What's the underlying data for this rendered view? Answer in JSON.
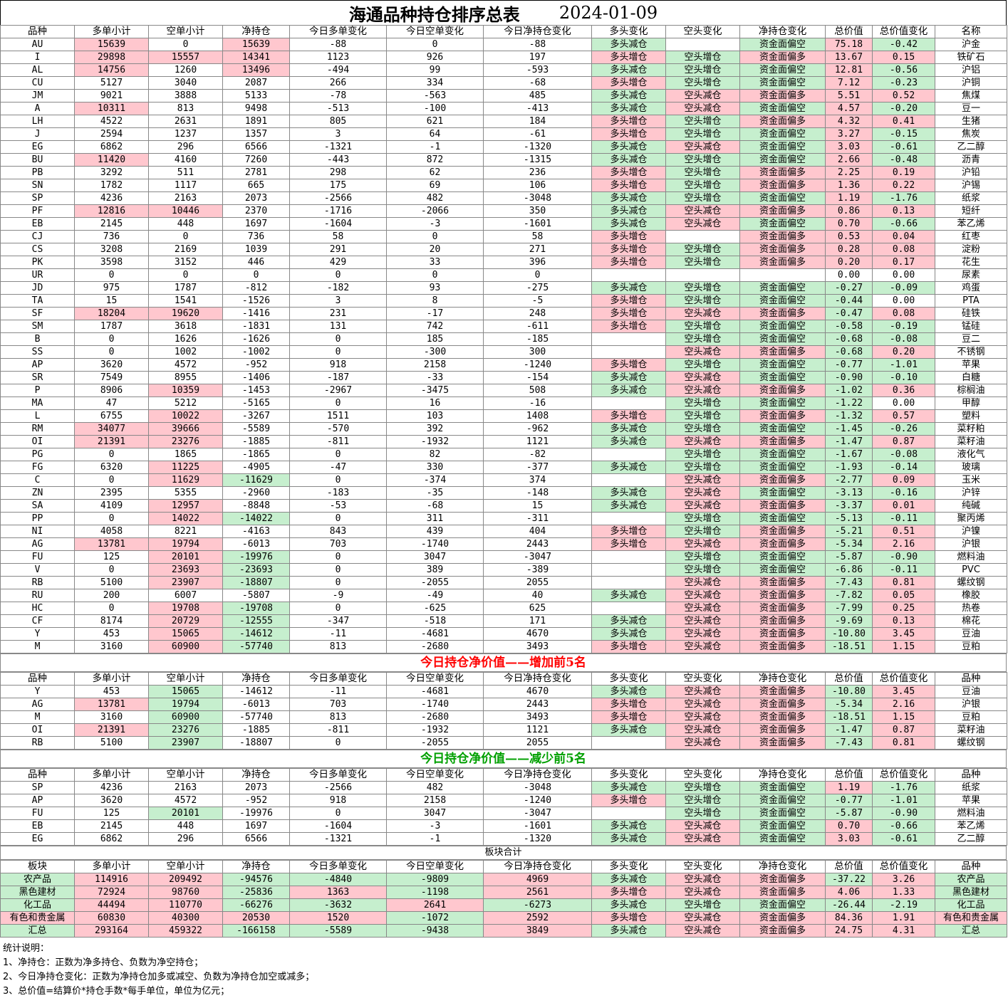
{
  "title": "海通品种持仓排序总表",
  "date": "2024-01-09",
  "headers": [
    "品种",
    "多单小计",
    "空单小计",
    "净持仓",
    "今日多单变化",
    "今日空单变化",
    "今日净持仓变化",
    "多头变化",
    "空头变化",
    "净持仓变化",
    "总价值",
    "总价值变化",
    "名称"
  ],
  "headers_top": [
    "品种",
    "多单小计",
    "空单小计",
    "净持仓",
    "今日多单变化",
    "今日空单变化",
    "今日净持仓变化",
    "多头变化",
    "空头变化",
    "净持仓变化",
    "总价值",
    "总价值变化",
    "品种"
  ],
  "headers_sector": [
    "板块",
    "多单小计",
    "空单小计",
    "净持仓",
    "今日多单变化",
    "今日空单变化",
    "今日净持仓变化",
    "多头变化",
    "空头变化",
    "净持仓变化",
    "总价值",
    "总价值变化",
    "品种"
  ],
  "colors": {
    "red": "#ffc7ce",
    "green": "#c6efce",
    "title_red": "#ff0000",
    "title_green": "#00a000"
  },
  "rows": [
    [
      "AU",
      "15639",
      "0",
      "15639",
      "-88",
      "0",
      "-88",
      "多头减仓",
      "",
      "资金面偏空",
      "75.18",
      "-0.42",
      "沪金"
    ],
    [
      "I",
      "29898",
      "15557",
      "14341",
      "1123",
      "926",
      "197",
      "多头增仓",
      "空头增仓",
      "资金面偏多",
      "13.67",
      "0.15",
      "铁矿石"
    ],
    [
      "AL",
      "14756",
      "1260",
      "13496",
      "-494",
      "99",
      "-593",
      "多头减仓",
      "空头增仓",
      "资金面偏空",
      "12.81",
      "-0.56",
      "沪铝"
    ],
    [
      "CU",
      "5127",
      "3040",
      "2087",
      "266",
      "334",
      "-68",
      "多头增仓",
      "空头增仓",
      "资金面偏空",
      "7.12",
      "-0.23",
      "沪铜"
    ],
    [
      "JM",
      "9021",
      "3888",
      "5133",
      "-78",
      "-563",
      "485",
      "多头减仓",
      "空头减仓",
      "资金面偏多",
      "5.51",
      "0.52",
      "焦煤"
    ],
    [
      "A",
      "10311",
      "813",
      "9498",
      "-513",
      "-100",
      "-413",
      "多头减仓",
      "空头减仓",
      "资金面偏空",
      "4.57",
      "-0.20",
      "豆一"
    ],
    [
      "LH",
      "4522",
      "2631",
      "1891",
      "805",
      "621",
      "184",
      "多头增仓",
      "空头增仓",
      "资金面偏多",
      "4.32",
      "0.41",
      "生猪"
    ],
    [
      "J",
      "2594",
      "1237",
      "1357",
      "3",
      "64",
      "-61",
      "多头增仓",
      "空头增仓",
      "资金面偏空",
      "3.27",
      "-0.15",
      "焦炭"
    ],
    [
      "EG",
      "6862",
      "296",
      "6566",
      "-1321",
      "-1",
      "-1320",
      "多头减仓",
      "空头减仓",
      "资金面偏空",
      "3.03",
      "-0.61",
      "乙二醇"
    ],
    [
      "BU",
      "11420",
      "4160",
      "7260",
      "-443",
      "872",
      "-1315",
      "多头减仓",
      "空头增仓",
      "资金面偏空",
      "2.66",
      "-0.48",
      "沥青"
    ],
    [
      "PB",
      "3292",
      "511",
      "2781",
      "298",
      "62",
      "236",
      "多头增仓",
      "空头增仓",
      "资金面偏多",
      "2.25",
      "0.19",
      "沪铅"
    ],
    [
      "SN",
      "1782",
      "1117",
      "665",
      "175",
      "69",
      "106",
      "多头增仓",
      "空头增仓",
      "资金面偏多",
      "1.36",
      "0.22",
      "沪锡"
    ],
    [
      "SP",
      "4236",
      "2163",
      "2073",
      "-2566",
      "482",
      "-3048",
      "多头减仓",
      "空头增仓",
      "资金面偏空",
      "1.19",
      "-1.76",
      "纸浆"
    ],
    [
      "PF",
      "12816",
      "10446",
      "2370",
      "-1716",
      "-2066",
      "350",
      "多头减仓",
      "空头减仓",
      "资金面偏多",
      "0.86",
      "0.13",
      "短纤"
    ],
    [
      "EB",
      "2145",
      "448",
      "1697",
      "-1604",
      "-3",
      "-1601",
      "多头减仓",
      "空头减仓",
      "资金面偏空",
      "0.70",
      "-0.66",
      "苯乙烯"
    ],
    [
      "CJ",
      "736",
      "0",
      "736",
      "58",
      "0",
      "58",
      "多头增仓",
      "",
      "资金面偏多",
      "0.53",
      "0.04",
      "红枣"
    ],
    [
      "CS",
      "3208",
      "2169",
      "1039",
      "291",
      "20",
      "271",
      "多头增仓",
      "空头增仓",
      "资金面偏多",
      "0.28",
      "0.08",
      "淀粉"
    ],
    [
      "PK",
      "3598",
      "3152",
      "446",
      "429",
      "33",
      "396",
      "多头增仓",
      "空头增仓",
      "资金面偏多",
      "0.20",
      "0.17",
      "花生"
    ],
    [
      "UR",
      "0",
      "0",
      "0",
      "0",
      "0",
      "0",
      "",
      "",
      "",
      "0.00",
      "0.00",
      "尿素"
    ],
    [
      "JD",
      "975",
      "1787",
      "-812",
      "-182",
      "93",
      "-275",
      "多头减仓",
      "空头增仓",
      "资金面偏空",
      "-0.27",
      "-0.09",
      "鸡蛋"
    ],
    [
      "TA",
      "15",
      "1541",
      "-1526",
      "3",
      "8",
      "-5",
      "多头增仓",
      "空头增仓",
      "资金面偏空",
      "-0.44",
      "0.00",
      "PTA"
    ],
    [
      "SF",
      "18204",
      "19620",
      "-1416",
      "231",
      "-17",
      "248",
      "多头增仓",
      "空头减仓",
      "资金面偏多",
      "-0.47",
      "0.08",
      "硅铁"
    ],
    [
      "SM",
      "1787",
      "3618",
      "-1831",
      "131",
      "742",
      "-611",
      "多头增仓",
      "空头增仓",
      "资金面偏空",
      "-0.58",
      "-0.19",
      "锰硅"
    ],
    [
      "B",
      "0",
      "1626",
      "-1626",
      "0",
      "185",
      "-185",
      "",
      "空头增仓",
      "资金面偏空",
      "-0.68",
      "-0.08",
      "豆二"
    ],
    [
      "SS",
      "0",
      "1002",
      "-1002",
      "0",
      "-300",
      "300",
      "",
      "空头减仓",
      "资金面偏多",
      "-0.68",
      "0.20",
      "不锈钢"
    ],
    [
      "AP",
      "3620",
      "4572",
      "-952",
      "918",
      "2158",
      "-1240",
      "多头增仓",
      "空头增仓",
      "资金面偏空",
      "-0.77",
      "-1.01",
      "苹果"
    ],
    [
      "SR",
      "7549",
      "8955",
      "-1406",
      "-187",
      "-33",
      "-154",
      "多头减仓",
      "空头减仓",
      "资金面偏空",
      "-0.90",
      "-0.10",
      "白糖"
    ],
    [
      "P",
      "8906",
      "10359",
      "-1453",
      "-2967",
      "-3475",
      "508",
      "多头减仓",
      "空头减仓",
      "资金面偏多",
      "-1.02",
      "0.36",
      "棕榈油"
    ],
    [
      "MA",
      "47",
      "5212",
      "-5165",
      "0",
      "16",
      "-16",
      "",
      "空头增仓",
      "资金面偏空",
      "-1.22",
      "0.00",
      "甲醇"
    ],
    [
      "L",
      "6755",
      "10022",
      "-3267",
      "1511",
      "103",
      "1408",
      "多头增仓",
      "空头增仓",
      "资金面偏多",
      "-1.32",
      "0.57",
      "塑料"
    ],
    [
      "RM",
      "34077",
      "39666",
      "-5589",
      "-570",
      "392",
      "-962",
      "多头减仓",
      "空头增仓",
      "资金面偏空",
      "-1.45",
      "-0.26",
      "菜籽粕"
    ],
    [
      "OI",
      "21391",
      "23276",
      "-1885",
      "-811",
      "-1932",
      "1121",
      "多头减仓",
      "空头减仓",
      "资金面偏多",
      "-1.47",
      "0.87",
      "菜籽油"
    ],
    [
      "PG",
      "0",
      "1865",
      "-1865",
      "0",
      "82",
      "-82",
      "",
      "空头增仓",
      "资金面偏空",
      "-1.67",
      "-0.08",
      "液化气"
    ],
    [
      "FG",
      "6320",
      "11225",
      "-4905",
      "-47",
      "330",
      "-377",
      "多头减仓",
      "空头增仓",
      "资金面偏空",
      "-1.93",
      "-0.14",
      "玻璃"
    ],
    [
      "C",
      "0",
      "11629",
      "-11629",
      "0",
      "-374",
      "374",
      "",
      "空头减仓",
      "资金面偏多",
      "-2.77",
      "0.09",
      "玉米"
    ],
    [
      "ZN",
      "2395",
      "5355",
      "-2960",
      "-183",
      "-35",
      "-148",
      "多头减仓",
      "空头减仓",
      "资金面偏空",
      "-3.13",
      "-0.16",
      "沪锌"
    ],
    [
      "SA",
      "4109",
      "12957",
      "-8848",
      "-53",
      "-68",
      "15",
      "多头减仓",
      "空头减仓",
      "资金面偏多",
      "-3.37",
      "0.01",
      "纯碱"
    ],
    [
      "PP",
      "0",
      "14022",
      "-14022",
      "0",
      "311",
      "-311",
      "",
      "空头增仓",
      "资金面偏空",
      "-5.13",
      "-0.11",
      "聚丙烯"
    ],
    [
      "NI",
      "4058",
      "8221",
      "-4163",
      "843",
      "439",
      "404",
      "多头增仓",
      "空头增仓",
      "资金面偏多",
      "-5.21",
      "0.51",
      "沪镍"
    ],
    [
      "AG",
      "13781",
      "19794",
      "-6013",
      "703",
      "-1740",
      "2443",
      "多头增仓",
      "空头减仓",
      "资金面偏多",
      "-5.34",
      "2.16",
      "沪银"
    ],
    [
      "FU",
      "125",
      "20101",
      "-19976",
      "0",
      "3047",
      "-3047",
      "",
      "空头增仓",
      "资金面偏空",
      "-5.87",
      "-0.90",
      "燃料油"
    ],
    [
      "V",
      "0",
      "23693",
      "-23693",
      "0",
      "389",
      "-389",
      "",
      "空头增仓",
      "资金面偏空",
      "-6.86",
      "-0.11",
      "PVC"
    ],
    [
      "RB",
      "5100",
      "23907",
      "-18807",
      "0",
      "-2055",
      "2055",
      "",
      "空头减仓",
      "资金面偏多",
      "-7.43",
      "0.81",
      "螺纹钢"
    ],
    [
      "RU",
      "200",
      "6007",
      "-5807",
      "-9",
      "-49",
      "40",
      "多头减仓",
      "空头减仓",
      "资金面偏多",
      "-7.82",
      "0.05",
      "橡胶"
    ],
    [
      "HC",
      "0",
      "19708",
      "-19708",
      "0",
      "-625",
      "625",
      "",
      "空头减仓",
      "资金面偏多",
      "-7.99",
      "0.25",
      "热卷"
    ],
    [
      "CF",
      "8174",
      "20729",
      "-12555",
      "-347",
      "-518",
      "171",
      "多头减仓",
      "空头减仓",
      "资金面偏多",
      "-9.69",
      "0.13",
      "棉花"
    ],
    [
      "Y",
      "453",
      "15065",
      "-14612",
      "-11",
      "-4681",
      "4670",
      "多头减仓",
      "空头减仓",
      "资金面偏多",
      "-10.80",
      "3.45",
      "豆油"
    ],
    [
      "M",
      "3160",
      "60900",
      "-57740",
      "813",
      "-2680",
      "3493",
      "多头增仓",
      "空头减仓",
      "资金面偏多",
      "-18.51",
      "1.15",
      "豆粕"
    ]
  ],
  "top_increase_title": "今日持仓净价值——增加前5名",
  "top_increase": [
    [
      "Y",
      "453",
      "15065",
      "-14612",
      "-11",
      "-4681",
      "4670",
      "多头减仓",
      "空头减仓",
      "资金面偏多",
      "-10.80",
      "3.45",
      "豆油"
    ],
    [
      "AG",
      "13781",
      "19794",
      "-6013",
      "703",
      "-1740",
      "2443",
      "多头增仓",
      "空头减仓",
      "资金面偏多",
      "-5.34",
      "2.16",
      "沪银"
    ],
    [
      "M",
      "3160",
      "60900",
      "-57740",
      "813",
      "-2680",
      "3493",
      "多头增仓",
      "空头减仓",
      "资金面偏多",
      "-18.51",
      "1.15",
      "豆粕"
    ],
    [
      "OI",
      "21391",
      "23276",
      "-1885",
      "-811",
      "-1932",
      "1121",
      "多头减仓",
      "空头减仓",
      "资金面偏多",
      "-1.47",
      "0.87",
      "菜籽油"
    ],
    [
      "RB",
      "5100",
      "23907",
      "-18807",
      "0",
      "-2055",
      "2055",
      "",
      "空头减仓",
      "资金面偏多",
      "-7.43",
      "0.81",
      "螺纹钢"
    ]
  ],
  "top_decrease_title": "今日持仓净价值——减少前5名",
  "top_decrease": [
    [
      "SP",
      "4236",
      "2163",
      "2073",
      "-2566",
      "482",
      "-3048",
      "多头减仓",
      "空头增仓",
      "资金面偏空",
      "1.19",
      "-1.76",
      "纸浆"
    ],
    [
      "AP",
      "3620",
      "4572",
      "-952",
      "918",
      "2158",
      "-1240",
      "多头增仓",
      "空头增仓",
      "资金面偏空",
      "-0.77",
      "-1.01",
      "苹果"
    ],
    [
      "FU",
      "125",
      "20101",
      "-19976",
      "0",
      "3047",
      "-3047",
      "",
      "空头增仓",
      "资金面偏空",
      "-5.87",
      "-0.90",
      "燃料油"
    ],
    [
      "EB",
      "2145",
      "448",
      "1697",
      "-1604",
      "-3",
      "-1601",
      "多头减仓",
      "空头减仓",
      "资金面偏空",
      "0.70",
      "-0.66",
      "苯乙烯"
    ],
    [
      "EG",
      "6862",
      "296",
      "6566",
      "-1321",
      "-1",
      "-1320",
      "多头减仓",
      "空头减仓",
      "资金面偏空",
      "3.03",
      "-0.61",
      "乙二醇"
    ]
  ],
  "sector_title": "板块合计",
  "sectors": [
    [
      "农产品",
      "114916",
      "209492",
      "-94576",
      "-4840",
      "-9809",
      "4969",
      "多头减仓",
      "空头减仓",
      "资金面偏多",
      "-37.22",
      "3.26",
      "农产品"
    ],
    [
      "黑色建材",
      "72924",
      "98760",
      "-25836",
      "1363",
      "-1198",
      "2561",
      "多头增仓",
      "空头减仓",
      "资金面偏多",
      "4.06",
      "1.33",
      "黑色建材"
    ],
    [
      "化工品",
      "44494",
      "110770",
      "-66276",
      "-3632",
      "2641",
      "-6273",
      "多头减仓",
      "空头增仓",
      "资金面偏空",
      "-26.44",
      "-2.19",
      "化工品"
    ],
    [
      "有色和贵金属",
      "60830",
      "40300",
      "20530",
      "1520",
      "-1072",
      "2592",
      "多头增仓",
      "空头减仓",
      "资金面偏多",
      "84.36",
      "1.91",
      "有色和贵金属"
    ],
    [
      "汇总",
      "293164",
      "459322",
      "-166158",
      "-5589",
      "-9438",
      "3849",
      "多头减仓",
      "空头减仓",
      "资金面偏多",
      "24.75",
      "4.31",
      "汇总"
    ]
  ],
  "notes": [
    "统计说明：",
    "1、净持仓：正数为净多持仓、负数为净空持仓；",
    "2、今日净持仓变化：正数为净持仓加多或减空、负数为净持仓加空或减多；",
    "3、总价值=结算价*持仓手数*每手单位，单位为亿元；"
  ]
}
